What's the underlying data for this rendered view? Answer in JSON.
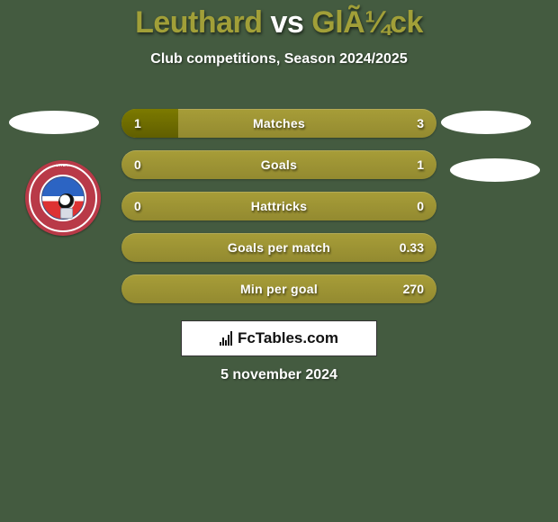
{
  "colors": {
    "background": "#445b40",
    "title_player": "#a19f38",
    "title_vs": "#ffffff",
    "subtitle": "#ffffff",
    "bar_base_top": "#a79d38",
    "bar_base_bottom": "#938a30",
    "bar_fill_top": "#7c7a00",
    "bar_fill_bottom": "#605e00",
    "bar_text": "#ffffff",
    "fct_box_bg": "#ffffff",
    "fct_text": "#111111",
    "side_ellipse": "#ffffff",
    "badge_ring": "#b93a48",
    "badge_inner_blue": "#2c64c3",
    "badge_inner_red": "#d33333"
  },
  "title": {
    "player1": "Leuthard",
    "vs": "vs",
    "player2": "GlÃ¼ck"
  },
  "subtitle": "Club competitions, Season 2024/2025",
  "stats": [
    {
      "label": "Matches",
      "left_value": "1",
      "right_value": "3",
      "left_fill": "18%",
      "right_fill": "0%"
    },
    {
      "label": "Goals",
      "left_value": "0",
      "right_value": "1",
      "left_fill": "0%",
      "right_fill": "0%"
    },
    {
      "label": "Hattricks",
      "left_value": "0",
      "right_value": "0",
      "left_fill": "0%",
      "right_fill": "0%"
    },
    {
      "label": "Goals per match",
      "left_value": "",
      "right_value": "0.33",
      "left_fill": "0%",
      "right_fill": "0%"
    },
    {
      "label": "Min per goal",
      "left_value": "",
      "right_value": "270",
      "left_fill": "0%",
      "right_fill": "0%"
    }
  ],
  "footer": {
    "brand": "FcTables.com",
    "date": "5 november 2024"
  }
}
